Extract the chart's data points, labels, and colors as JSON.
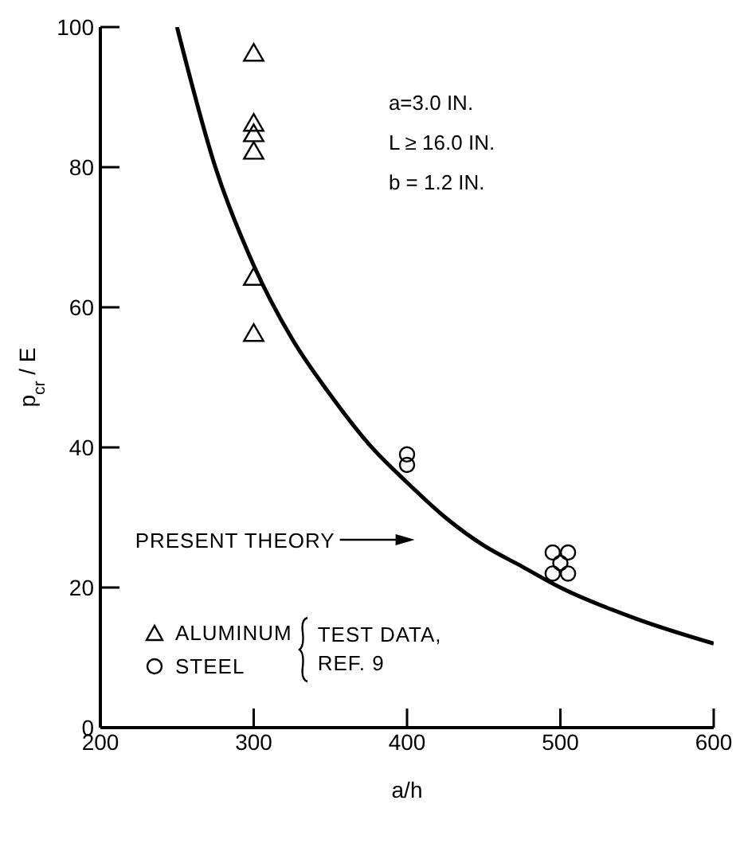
{
  "chart_data": {
    "type": "scatter",
    "xlabel": "a/h",
    "ylabel": "p$_{cr}$ / E",
    "legend_title": "TEST DATA, REF. 9",
    "xlim": [
      200,
      600
    ],
    "ylim": [
      0,
      100
    ],
    "xticks": [
      200,
      300,
      400,
      500,
      600
    ],
    "yticks": [
      0,
      20,
      40,
      60,
      80,
      100
    ],
    "grid": false,
    "legend": "bottom left",
    "annotations": [
      "a=3.0 IN.",
      "L ≥ 16.0 IN.",
      "b = 1.2 IN.",
      "PRESENT THEORY"
    ],
    "series": [
      {
        "name": "ALUMINUM",
        "marker": "triangle",
        "color": "#000000",
        "x": [
          300,
          300,
          300,
          300,
          300,
          300
        ],
        "values": [
          96,
          86,
          84.5,
          82,
          64,
          56
        ]
      },
      {
        "name": "STEEL",
        "marker": "circle",
        "color": "#000000",
        "x": [
          400,
          400,
          495,
          505,
          500,
          495,
          505
        ],
        "values": [
          39,
          37.5,
          25,
          25,
          23.5,
          22,
          22
        ]
      },
      {
        "type": "line",
        "marker": "none",
        "line_style": "solid",
        "color": "#000000",
        "x": [
          250,
          275,
          300,
          325,
          350,
          375,
          400,
          425,
          450,
          475,
          500,
          550,
          600
        ],
        "values": [
          100,
          80,
          66,
          55.5,
          47.5,
          40.5,
          35,
          30,
          26,
          23,
          20,
          15.5,
          12
        ]
      }
    ]
  }
}
